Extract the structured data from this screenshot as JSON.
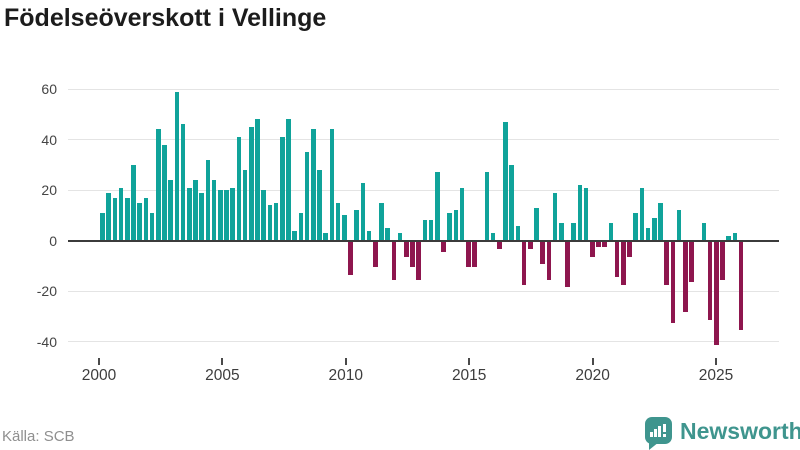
{
  "title": "Födelseöverskott i Vellinge",
  "source": "Källa: SCB",
  "brand": {
    "name": "Newsworthy",
    "icon": "bar-chart-speech-bubble-icon"
  },
  "colors": {
    "positive_bar": "#10a39a",
    "negative_bar": "#8e164e",
    "brand_teal": "#3f958e",
    "gridline": "#e4e4e4",
    "zero_line": "#3b3b3b"
  },
  "chart_data": {
    "type": "bar",
    "title": "Födelseöverskott i Vellinge",
    "frequency": "quarterly",
    "x_start": "2000-Q1",
    "x_end": "2025-Q4",
    "series": [
      {
        "name": "Födelseöverskott",
        "values": [
          11,
          19,
          17,
          21,
          17,
          30,
          15,
          17,
          11,
          44,
          38,
          24,
          59,
          46,
          21,
          24,
          19,
          32,
          24,
          20,
          20,
          21,
          41,
          28,
          45,
          48,
          20,
          14,
          15,
          41,
          48,
          4,
          11,
          35,
          44,
          28,
          3,
          44,
          15,
          10,
          -13,
          12,
          23,
          4,
          -10,
          15,
          5,
          -15,
          3,
          -6,
          -10,
          -15,
          8,
          8,
          27,
          -4,
          11,
          12,
          21,
          -10,
          -10,
          0,
          27,
          3,
          -3,
          47,
          30,
          6,
          -17,
          -3,
          13,
          -9,
          -15,
          19,
          7,
          -18,
          7,
          22,
          21,
          -6,
          -2,
          -2,
          7,
          -14,
          -17,
          -6,
          11,
          21,
          5,
          9,
          15,
          -17,
          -32,
          12,
          -28,
          -16,
          0,
          7,
          -31,
          -41,
          -15,
          2,
          3,
          -35
        ]
      }
    ],
    "x_tick_labels": [
      "2000",
      "2005",
      "2010",
      "2015",
      "2020",
      "2025"
    ],
    "y_ticks": [
      60,
      40,
      20,
      0,
      -20,
      -40
    ],
    "ylim": [
      -45,
      65
    ],
    "grid": "horizontal",
    "legend": "none"
  }
}
